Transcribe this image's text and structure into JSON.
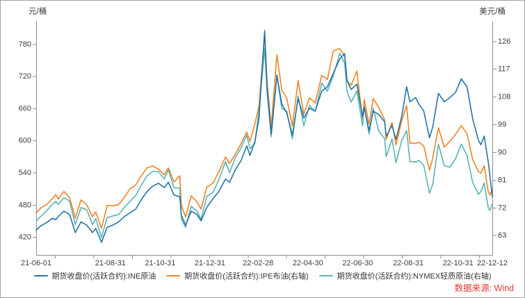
{
  "chart_data": {
    "type": "line",
    "title": "",
    "grid": false,
    "legend_position": "bottom",
    "left_axis": {
      "unit_label": "元/桶",
      "ticks": [
        780,
        720,
        660,
        600,
        540,
        480,
        420
      ]
    },
    "right_axis": {
      "unit_label": "美元/桶",
      "ticks": [
        126,
        117,
        108,
        99,
        90,
        81,
        72,
        63
      ]
    },
    "x_axis": {
      "start_date": "2021-06-01",
      "end_date": "2022-12-12",
      "tick_labels": [
        "21-06-01",
        "21-08-31",
        "21-10-31",
        "21-12-31",
        "22-02-28",
        "22-04-30",
        "22-06-30",
        "22-08-31",
        "22-10-31",
        "22-12-12"
      ]
    },
    "dates": [
      "2021-06-01",
      "2021-06-07",
      "2021-06-14",
      "2021-06-21",
      "2021-06-25",
      "2021-06-28",
      "2021-07-05",
      "2021-07-12",
      "2021-07-19",
      "2021-07-26",
      "2021-08-02",
      "2021-08-09",
      "2021-08-13",
      "2021-08-20",
      "2021-08-27",
      "2021-09-03",
      "2021-09-10",
      "2021-09-17",
      "2021-09-24",
      "2021-10-01",
      "2021-10-08",
      "2021-10-15",
      "2021-10-22",
      "2021-10-29",
      "2021-11-05",
      "2021-11-10",
      "2021-11-17",
      "2021-11-24",
      "2021-11-26",
      "2021-12-01",
      "2021-12-08",
      "2021-12-15",
      "2021-12-20",
      "2021-12-27",
      "2022-01-04",
      "2022-01-11",
      "2022-01-19",
      "2022-01-24",
      "2022-01-31",
      "2022-02-07",
      "2022-02-14",
      "2022-02-18",
      "2022-02-24",
      "2022-03-01",
      "2022-03-08",
      "2022-03-11",
      "2022-03-16",
      "2022-03-23",
      "2022-03-29",
      "2022-04-04",
      "2022-04-11",
      "2022-04-18",
      "2022-04-25",
      "2022-05-02",
      "2022-05-09",
      "2022-05-17",
      "2022-05-24",
      "2022-05-31",
      "2022-06-08",
      "2022-06-14",
      "2022-06-17",
      "2022-06-22",
      "2022-06-29",
      "2022-07-06",
      "2022-07-08",
      "2022-07-14",
      "2022-07-19",
      "2022-07-26",
      "2022-08-02",
      "2022-08-04",
      "2022-08-11",
      "2022-08-16",
      "2022-08-23",
      "2022-08-29",
      "2022-09-02",
      "2022-09-09",
      "2022-09-13",
      "2022-09-19",
      "2022-09-26",
      "2022-09-30",
      "2022-10-07",
      "2022-10-14",
      "2022-10-21",
      "2022-10-28",
      "2022-11-04",
      "2022-11-11",
      "2022-11-18",
      "2022-11-25",
      "2022-11-28",
      "2022-12-02",
      "2022-12-07",
      "2022-12-09",
      "2022-12-12"
    ],
    "series": [
      {
        "name": "期货收盘价(活跃合约):INE原油",
        "axis": "left",
        "color": "#2573a7",
        "values": [
          433,
          441,
          447,
          455,
          452,
          458,
          468,
          462,
          428,
          448,
          442,
          428,
          436,
          410,
          438,
          442,
          448,
          458,
          465,
          472,
          490,
          505,
          515,
          520,
          512,
          522,
          498,
          495,
          460,
          442,
          468,
          462,
          450,
          475,
          492,
          505,
          528,
          522,
          545,
          562,
          590,
          572,
          598,
          640,
          805,
          700,
          612,
          722,
          668,
          652,
          610,
          678,
          642,
          660,
          655,
          692,
          700,
          725,
          752,
          762,
          712,
          695,
          705,
          645,
          662,
          618,
          655,
          648,
          635,
          608,
          628,
          602,
          645,
          700,
          672,
          680,
          668,
          655,
          605,
          625,
          688,
          672,
          680,
          690,
          715,
          700,
          640,
          600,
          592,
          608,
          560,
          535,
          495
        ]
      },
      {
        "name": "期货收盘价(活跃合约):IPE布油(右轴)",
        "axis": "right",
        "color": "#f28222",
        "values": [
          70.3,
          71.9,
          73.0,
          75.0,
          76.2,
          74.7,
          77.2,
          75.2,
          68.6,
          74.5,
          72.9,
          69.0,
          70.6,
          65.2,
          72.7,
          72.6,
          72.9,
          75.3,
          78.1,
          79.3,
          82.4,
          84.9,
          85.5,
          84.4,
          82.7,
          84.9,
          80.3,
          82.3,
          72.7,
          68.9,
          75.8,
          73.9,
          71.5,
          78.6,
          80.0,
          83.7,
          88.4,
          86.3,
          89.3,
          92.7,
          96.5,
          93.5,
          99.1,
          105.0,
          128.0,
          112.7,
          98.0,
          121.6,
          110.2,
          107.5,
          98.5,
          113.2,
          102.3,
          107.6,
          105.9,
          114.9,
          113.6,
          122.8,
          123.6,
          121.2,
          113.1,
          111.7,
          116.3,
          100.7,
          107.0,
          99.1,
          107.4,
          104.4,
          100.5,
          94.1,
          99.6,
          92.3,
          100.2,
          105.1,
          93.0,
          92.8,
          93.2,
          92.0,
          84.1,
          88.0,
          97.9,
          91.6,
          93.5,
          95.8,
          98.6,
          96.0,
          87.6,
          83.6,
          83.2,
          85.6,
          77.2,
          76.1,
          78.0
        ]
      },
      {
        "name": "期货收盘价(活跃合约):NYMEX轻质原油(右轴)",
        "axis": "right",
        "color": "#56b4b8",
        "values": [
          67.7,
          69.2,
          71.0,
          73.1,
          74.0,
          73.0,
          75.2,
          74.1,
          66.4,
          72.0,
          71.3,
          66.5,
          68.4,
          62.3,
          68.7,
          69.3,
          69.7,
          72.0,
          74.0,
          75.9,
          79.4,
          82.3,
          83.8,
          83.6,
          81.3,
          84.2,
          78.4,
          78.4,
          68.2,
          65.6,
          72.4,
          70.9,
          68.2,
          75.6,
          77.0,
          81.2,
          86.9,
          83.3,
          88.2,
          91.3,
          95.5,
          91.1,
          92.8,
          103.4,
          123.7,
          109.3,
          95.0,
          114.9,
          104.2,
          103.3,
          94.3,
          108.2,
          98.5,
          105.2,
          103.1,
          112.4,
          109.8,
          114.7,
          122.1,
          118.9,
          109.6,
          106.2,
          109.8,
          98.5,
          104.8,
          95.8,
          104.2,
          96.7,
          94.4,
          88.5,
          94.3,
          86.5,
          93.7,
          97.0,
          86.9,
          86.8,
          87.3,
          85.7,
          76.7,
          79.5,
          92.6,
          85.6,
          85.1,
          87.9,
          92.6,
          88.9,
          80.1,
          76.3,
          77.2,
          80.0,
          72.0,
          71.0,
          73.2
        ]
      }
    ],
    "source_note": "数据来源: Wind",
    "source_color": "#e0392e",
    "axis_color": "#8c8c8c",
    "text_color": "#3c3c3c"
  }
}
